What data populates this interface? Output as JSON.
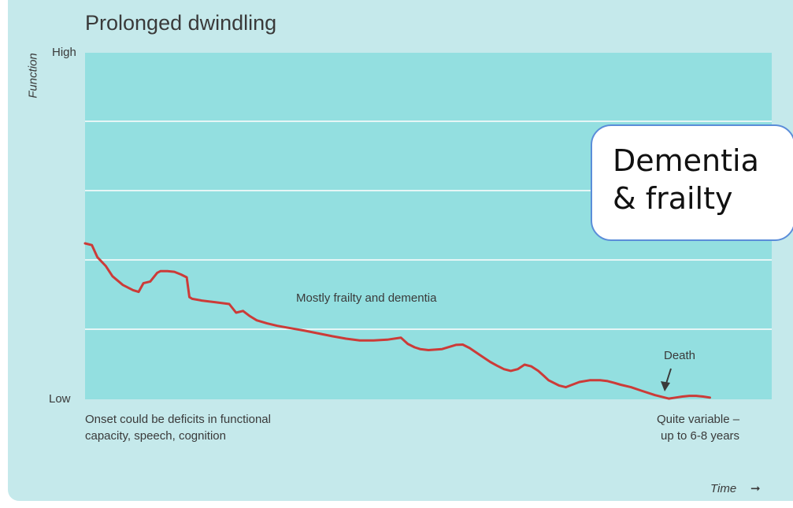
{
  "chart_data": {
    "type": "line",
    "title": "Prolonged dwindling",
    "ylabel": "Function",
    "xlabel": "Time",
    "y_tick_labels": [
      "High",
      "Low"
    ],
    "ylim": [
      0,
      100
    ],
    "xlim": [
      0,
      100
    ],
    "grid": true,
    "series": [
      {
        "color": "#cc3b38",
        "x": [
          0,
          1,
          1.8,
          3,
          4,
          5.5,
          7,
          7.8,
          8.5,
          9.5,
          10.5,
          11,
          12,
          13,
          14,
          14.8,
          15.2,
          15.6,
          17,
          19,
          21,
          22,
          23,
          24,
          25,
          26.5,
          28,
          30,
          32,
          34,
          36,
          38,
          40,
          42,
          44,
          46,
          47,
          48,
          48.8,
          50,
          52,
          54,
          55,
          56,
          57.5,
          59,
          60,
          61,
          62,
          63,
          64,
          65,
          66,
          66.8,
          67.5,
          69,
          70,
          72,
          73.5,
          75,
          76,
          77,
          78,
          79.5,
          81,
          83,
          85,
          86,
          87,
          88,
          89,
          90,
          91
        ],
        "values": [
          45,
          44.5,
          41,
          38.5,
          35.5,
          33,
          31.5,
          31,
          33.5,
          34,
          36.5,
          37,
          37,
          36.8,
          36,
          35.2,
          29.5,
          29,
          28.5,
          28,
          27.5,
          25,
          25.5,
          24,
          22.8,
          21.9,
          21.2,
          20.5,
          19.8,
          19,
          18.2,
          17.5,
          17,
          17,
          17.2,
          17.8,
          16,
          15,
          14.5,
          14.2,
          14.5,
          15.7,
          15.8,
          14.8,
          12.8,
          10.8,
          9.7,
          8.7,
          8.2,
          8.7,
          10,
          9.5,
          8.2,
          6.8,
          5.5,
          4,
          3.5,
          5,
          5.5,
          5.5,
          5.3,
          4.8,
          4.2,
          3.5,
          2.5,
          1.2,
          0.2,
          0.5,
          0.8,
          1,
          1,
          0.8,
          0.5
        ]
      }
    ],
    "annotations": {
      "onset": "Onset could be deficits in functional\ncapacity, speech, cognition",
      "middle": "Mostly frailty and dementia",
      "death": "Death",
      "duration": "Quite variable –\nup to 6-8 years"
    }
  },
  "callout": {
    "line1": "Dementia",
    "line2": "& frailty",
    "border_color": "#5b8dd9"
  },
  "colors": {
    "panel": "#c5e9eb",
    "plot_area": "#93dfe0",
    "line": "#cc3b38"
  }
}
